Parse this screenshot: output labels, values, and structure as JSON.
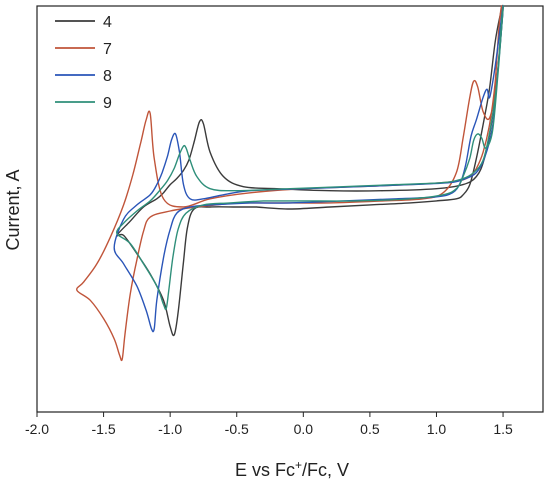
{
  "chart_data": {
    "type": "line",
    "xlabel_prefix": "E vs Fc",
    "xlabel_sup": "+",
    "xlabel_suffix": "/Fc, V",
    "ylabel": "Current, A",
    "xlim": [
      -2.0,
      1.8
    ],
    "ylim": [
      -1.0,
      1.0
    ],
    "x_ticks": [
      -2.0,
      -1.5,
      -1.0,
      -0.5,
      0.0,
      0.5,
      1.0,
      1.5
    ],
    "x_tick_labels": [
      "-2.0",
      "-1.5",
      "-1.0",
      "-0.5",
      "0.0",
      "0.5",
      "1.0",
      "1.5"
    ],
    "y_tick_labels_shown": false,
    "legend_position": "top-left",
    "series": [
      {
        "name": "4",
        "color": "#3b3b3b",
        "x": [
          -0.35,
          -0.1,
          0.2,
          0.5,
          0.8,
          1.0,
          1.15,
          1.2,
          1.25,
          1.3,
          1.36,
          1.4,
          1.44,
          1.48,
          1.5,
          1.49,
          1.46,
          1.42,
          1.36,
          1.3,
          1.2,
          1.0,
          0.6,
          0.2,
          -0.2,
          -0.45,
          -0.6,
          -0.7,
          -0.75,
          -0.78,
          -0.82,
          -0.86,
          -0.9,
          -0.95,
          -1.0,
          -1.05,
          -1.1,
          -1.2,
          -1.3,
          -1.4,
          -1.35,
          -1.25,
          -1.15,
          -1.05,
          -1.0,
          -0.97,
          -0.94,
          -0.9,
          -0.87,
          -0.82,
          -0.7,
          -0.5,
          -0.35
        ],
        "y": [
          0.01,
          0.0,
          0.01,
          0.02,
          0.03,
          0.04,
          0.05,
          0.07,
          0.12,
          0.25,
          0.45,
          0.6,
          0.82,
          0.96,
          1.0,
          0.9,
          0.68,
          0.45,
          0.25,
          0.16,
          0.12,
          0.1,
          0.09,
          0.09,
          0.1,
          0.11,
          0.16,
          0.28,
          0.42,
          0.43,
          0.33,
          0.24,
          0.19,
          0.15,
          0.12,
          0.08,
          0.05,
          0.01,
          -0.06,
          -0.13,
          -0.13,
          -0.22,
          -0.32,
          -0.45,
          -0.58,
          -0.62,
          -0.51,
          -0.26,
          -0.09,
          0.0,
          0.01,
          0.01,
          0.01
        ]
      },
      {
        "name": "7",
        "color": "#c0553a",
        "x": [
          -0.5,
          -0.2,
          0.2,
          0.6,
          0.9,
          1.05,
          1.15,
          1.2,
          1.25,
          1.28,
          1.31,
          1.35,
          1.4,
          1.45,
          1.48,
          1.49,
          1.47,
          1.44,
          1.4,
          1.35,
          1.3,
          1.25,
          1.18,
          1.05,
          0.8,
          0.4,
          0.0,
          -0.4,
          -0.7,
          -0.9,
          -1.05,
          -1.12,
          -1.15,
          -1.18,
          -1.22,
          -1.28,
          -1.35,
          -1.45,
          -1.55,
          -1.65,
          -1.7,
          -1.6,
          -1.5,
          -1.42,
          -1.38,
          -1.36,
          -1.34,
          -1.3,
          -1.25,
          -1.2,
          -1.15,
          -1.0,
          -0.8,
          -0.5
        ],
        "y": [
          0.03,
          0.03,
          0.03,
          0.04,
          0.05,
          0.08,
          0.18,
          0.35,
          0.55,
          0.63,
          0.6,
          0.48,
          0.45,
          0.62,
          0.85,
          1.0,
          0.9,
          0.62,
          0.42,
          0.28,
          0.2,
          0.16,
          0.14,
          0.13,
          0.12,
          0.11,
          0.1,
          0.08,
          0.05,
          0.01,
          0.05,
          0.25,
          0.47,
          0.44,
          0.33,
          0.17,
          0.02,
          -0.14,
          -0.27,
          -0.36,
          -0.4,
          -0.45,
          -0.54,
          -0.64,
          -0.72,
          -0.74,
          -0.62,
          -0.42,
          -0.25,
          -0.11,
          -0.04,
          -0.01,
          0.01,
          0.03
        ]
      },
      {
        "name": "8",
        "color": "#2a55b8",
        "x": [
          -0.4,
          -0.1,
          0.3,
          0.7,
          1.0,
          1.12,
          1.18,
          1.22,
          1.26,
          1.3,
          1.35,
          1.38,
          1.4,
          1.44,
          1.48,
          1.5,
          1.48,
          1.45,
          1.42,
          1.36,
          1.3,
          1.22,
          1.1,
          0.8,
          0.4,
          0.0,
          -0.4,
          -0.6,
          -0.75,
          -0.85,
          -0.9,
          -0.93,
          -0.96,
          -0.99,
          -1.02,
          -1.06,
          -1.1,
          -1.15,
          -1.25,
          -1.35,
          -1.42,
          -1.35,
          -1.25,
          -1.18,
          -1.14,
          -1.12,
          -1.1,
          -1.05,
          -1.0,
          -0.95,
          -0.85,
          -0.7,
          -0.4
        ],
        "y": [
          0.03,
          0.03,
          0.04,
          0.05,
          0.06,
          0.08,
          0.13,
          0.22,
          0.36,
          0.44,
          0.55,
          0.59,
          0.55,
          0.7,
          0.9,
          1.0,
          0.82,
          0.6,
          0.4,
          0.25,
          0.18,
          0.15,
          0.13,
          0.12,
          0.11,
          0.1,
          0.09,
          0.07,
          0.05,
          0.05,
          0.12,
          0.28,
          0.37,
          0.34,
          0.26,
          0.18,
          0.12,
          0.07,
          0.02,
          -0.05,
          -0.19,
          -0.27,
          -0.38,
          -0.5,
          -0.59,
          -0.59,
          -0.45,
          -0.24,
          -0.1,
          -0.02,
          0.01,
          0.02,
          0.03
        ]
      },
      {
        "name": "9",
        "color": "#2f8f7a",
        "x": [
          -0.3,
          0.0,
          0.4,
          0.8,
          1.05,
          1.15,
          1.2,
          1.25,
          1.28,
          1.31,
          1.34,
          1.37,
          1.42,
          1.46,
          1.49,
          1.5,
          1.48,
          1.45,
          1.4,
          1.35,
          1.28,
          1.2,
          1.05,
          0.7,
          0.3,
          -0.1,
          -0.5,
          -0.7,
          -0.8,
          -0.85,
          -0.88,
          -0.9,
          -0.93,
          -0.97,
          -1.02,
          -1.08,
          -1.15,
          -1.25,
          -1.35,
          -1.4,
          -1.3,
          -1.2,
          -1.1,
          -1.05,
          -1.03,
          -1.01,
          -0.98,
          -0.94,
          -0.88,
          -0.75,
          -0.55,
          -0.3
        ],
        "y": [
          0.04,
          0.04,
          0.04,
          0.05,
          0.07,
          0.1,
          0.16,
          0.25,
          0.34,
          0.37,
          0.35,
          0.3,
          0.38,
          0.65,
          0.9,
          1.0,
          0.85,
          0.6,
          0.38,
          0.24,
          0.18,
          0.15,
          0.13,
          0.12,
          0.11,
          0.1,
          0.09,
          0.1,
          0.16,
          0.24,
          0.3,
          0.31,
          0.27,
          0.2,
          0.14,
          0.09,
          0.04,
          -0.01,
          -0.07,
          -0.12,
          -0.17,
          -0.27,
          -0.38,
          -0.47,
          -0.49,
          -0.4,
          -0.24,
          -0.1,
          -0.02,
          0.02,
          0.03,
          0.04
        ]
      }
    ]
  }
}
